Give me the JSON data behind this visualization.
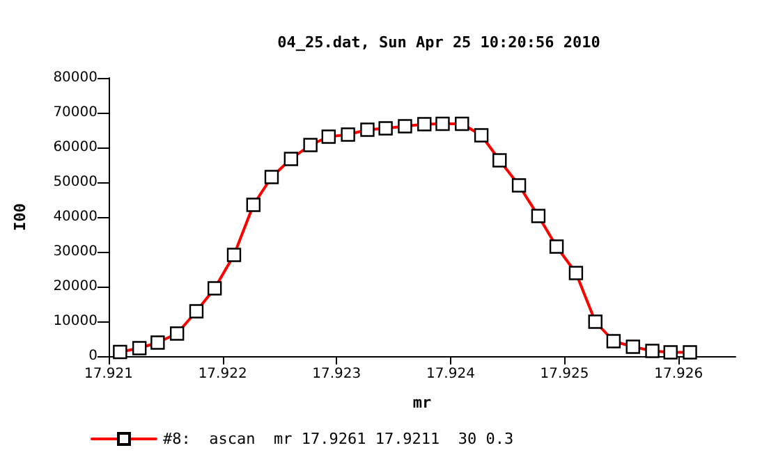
{
  "chart_data": {
    "type": "line",
    "title": "04_25.dat, Sun Apr 25 10:20:56 2010",
    "xlabel": "mr",
    "ylabel": "I00",
    "x": [
      17.9211,
      17.92127,
      17.92143,
      17.9216,
      17.92177,
      17.92193,
      17.9221,
      17.92227,
      17.92243,
      17.9226,
      17.92277,
      17.92293,
      17.9231,
      17.92327,
      17.92343,
      17.9236,
      17.92377,
      17.92393,
      17.9241,
      17.92427,
      17.92443,
      17.9246,
      17.92477,
      17.92493,
      17.9251,
      17.92527,
      17.92543,
      17.9256,
      17.92577,
      17.92593,
      17.9261
    ],
    "series": [
      {
        "name": "#8:  ascan  mr 17.9261 17.9211  30 0.3",
        "color": "#ff0000",
        "values": [
          1200,
          2300,
          3900,
          6500,
          12900,
          19500,
          29100,
          43500,
          51500,
          56700,
          60700,
          63100,
          63700,
          65100,
          65500,
          66100,
          66700,
          66800,
          66800,
          63500,
          56300,
          49100,
          40300,
          31500,
          23900,
          9900,
          4300,
          2700,
          1500,
          1100,
          1100
        ]
      }
    ],
    "xlim": [
      17.921,
      17.9265
    ],
    "xticks": [
      17.921,
      17.922,
      17.923,
      17.924,
      17.925,
      17.926
    ],
    "ylim": [
      0,
      80000
    ],
    "yticks": [
      0,
      10000,
      20000,
      30000,
      40000,
      50000,
      60000,
      70000,
      80000
    ],
    "grid": false,
    "legend": "bottom left",
    "marker": "square",
    "line_style": "solid"
  }
}
